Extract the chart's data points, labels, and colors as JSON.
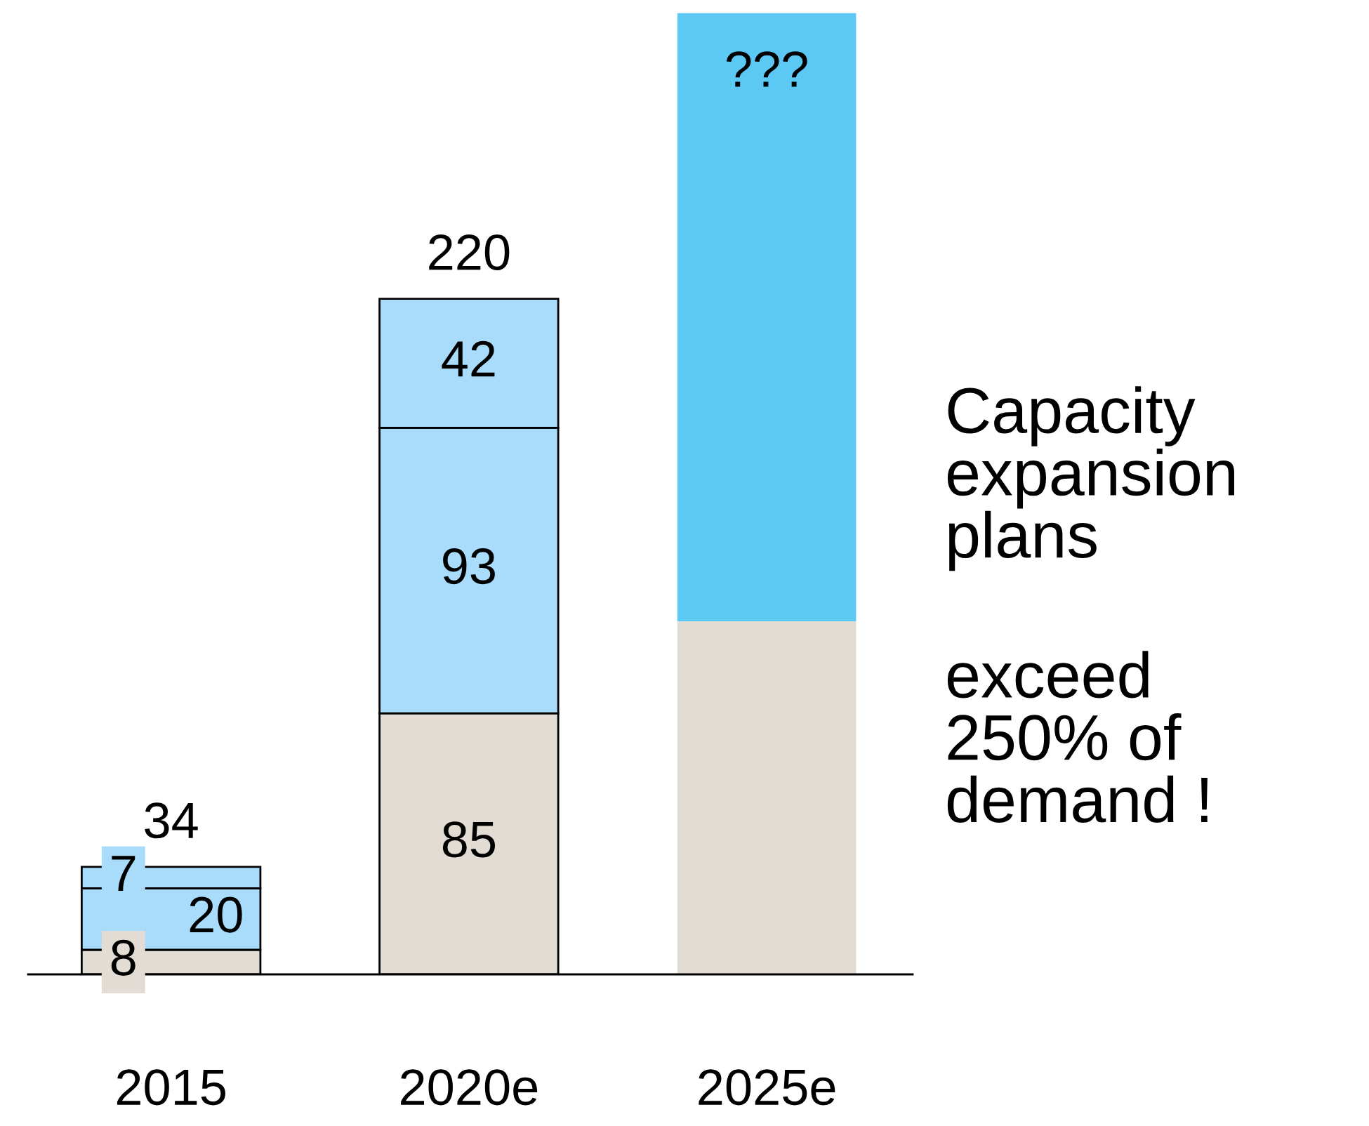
{
  "chart_data": {
    "type": "bar",
    "stacked": true,
    "categories": [
      "2015",
      "2020e",
      "2025e"
    ],
    "series": [
      {
        "colors": [
          "#e3dcd5",
          "#e3dcd5",
          "#e3dcd5"
        ],
        "values": [
          8,
          85,
          115
        ],
        "value_labels": [
          "8",
          "85",
          null
        ]
      },
      {
        "colors": [
          "#a8dcfa",
          "#a8dcfa",
          "#5cc8f4"
        ],
        "values": [
          20,
          93,
          198
        ],
        "value_labels": [
          "20",
          "93",
          null
        ]
      },
      {
        "colors": [
          "#a8dcfa",
          "#a8dcfa",
          "#5cc8f4"
        ],
        "values": [
          7,
          42,
          null
        ],
        "value_labels": [
          "7",
          "42",
          null
        ]
      }
    ],
    "totals": [
      "34",
      "220",
      "???"
    ],
    "ylim": [
      0,
      315
    ],
    "grid": false,
    "legend": false,
    "annotations": [
      "Capacity\nexpansion\nplans",
      "exceed\n250% of\ndemand !"
    ]
  }
}
